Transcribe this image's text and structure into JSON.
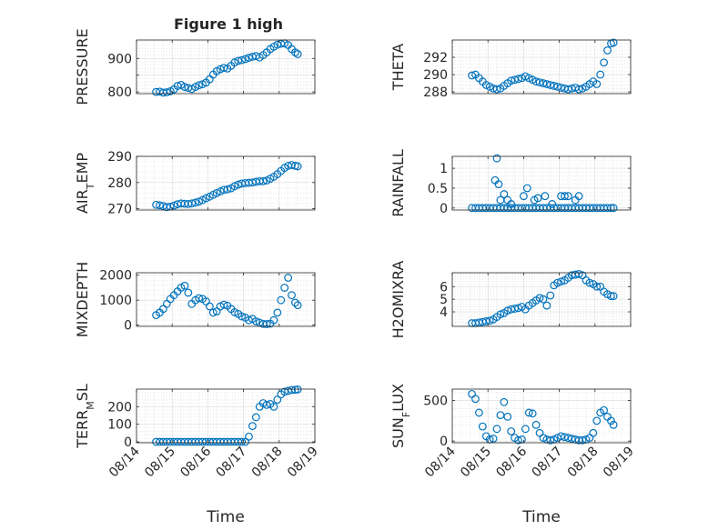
{
  "figure": {
    "title": "Figure 1 high",
    "xlabel": "Time",
    "xticklabels": [
      "08/14",
      "08/15",
      "08/16",
      "08/17",
      "08/18",
      "08/19"
    ],
    "marker_color": "#0072bd",
    "grid_color": "#d9d9d9"
  },
  "chart_data": [
    {
      "type": "scatter",
      "ylabel": "PRESSURE",
      "ylabel_sub": "",
      "ylim": [
        795,
        955
      ],
      "yticks": [
        800,
        850,
        900
      ],
      "yticklabels": [
        "800",
        "",
        "900"
      ],
      "xlabel": "",
      "x": [
        14.55,
        14.65,
        14.75,
        14.85,
        14.95,
        15.05,
        15.15,
        15.25,
        15.35,
        15.45,
        15.55,
        15.65,
        15.75,
        15.85,
        15.95,
        16.05,
        16.15,
        16.25,
        16.35,
        16.45,
        16.55,
        16.65,
        16.75,
        16.85,
        16.95,
        17.05,
        17.15,
        17.25,
        17.35,
        17.45,
        17.55,
        17.65,
        17.75,
        17.85,
        17.95,
        18.05,
        18.15,
        18.25,
        18.35,
        18.45,
        18.52
      ],
      "y": [
        800,
        801,
        798,
        799,
        802,
        808,
        818,
        821,
        815,
        812,
        809,
        815,
        820,
        823,
        828,
        838,
        852,
        862,
        868,
        872,
        870,
        878,
        888,
        893,
        895,
        898,
        902,
        905,
        907,
        903,
        910,
        918,
        928,
        935,
        941,
        944,
        945,
        940,
        928,
        918,
        913
      ]
    },
    {
      "type": "scatter",
      "ylabel": "THETA",
      "ylabel_sub": "",
      "ylim": [
        287.8,
        294
      ],
      "yticks": [
        288,
        290,
        292
      ],
      "yticklabels": [
        "288",
        "290",
        "292"
      ],
      "xlabel": "",
      "x": [
        14.55,
        14.65,
        14.75,
        14.85,
        14.95,
        15.05,
        15.15,
        15.25,
        15.35,
        15.45,
        15.55,
        15.65,
        15.75,
        15.85,
        15.95,
        16.05,
        16.15,
        16.25,
        16.35,
        16.45,
        16.55,
        16.65,
        16.75,
        16.85,
        16.95,
        17.05,
        17.15,
        17.25,
        17.35,
        17.45,
        17.55,
        17.65,
        17.75,
        17.85,
        17.95,
        18.05,
        18.15,
        18.25,
        18.35,
        18.45,
        18.52
      ],
      "y": [
        289.9,
        290.0,
        289.6,
        289.2,
        288.8,
        288.6,
        288.4,
        288.3,
        288.4,
        288.7,
        289.0,
        289.3,
        289.4,
        289.5,
        289.6,
        289.8,
        289.6,
        289.4,
        289.2,
        289.1,
        289.0,
        288.9,
        288.8,
        288.7,
        288.6,
        288.5,
        288.4,
        288.3,
        288.4,
        288.5,
        288.3,
        288.4,
        288.6,
        288.9,
        289.2,
        288.9,
        290.0,
        291.4,
        292.8,
        293.6,
        293.7
      ]
    },
    {
      "type": "scatter",
      "ylabel": "AIR",
      "ylabel_sub": "T",
      "ylabel_suffix": "EMP",
      "ylim": [
        269.5,
        290
      ],
      "yticks": [
        270,
        280,
        290
      ],
      "yticklabels": [
        "270",
        "280",
        "290"
      ],
      "xlabel": "",
      "x": [
        14.55,
        14.65,
        14.75,
        14.85,
        14.95,
        15.05,
        15.15,
        15.25,
        15.35,
        15.45,
        15.55,
        15.65,
        15.75,
        15.85,
        15.95,
        16.05,
        16.15,
        16.25,
        16.35,
        16.45,
        16.55,
        16.65,
        16.75,
        16.85,
        16.95,
        17.05,
        17.15,
        17.25,
        17.35,
        17.45,
        17.55,
        17.65,
        17.75,
        17.85,
        17.95,
        18.05,
        18.15,
        18.25,
        18.35,
        18.45,
        18.52
      ],
      "y": [
        271.5,
        271.3,
        271.0,
        270.6,
        270.8,
        271.2,
        271.7,
        272.0,
        271.9,
        271.8,
        272.0,
        272.3,
        272.7,
        273.3,
        274.0,
        274.6,
        275.3,
        276.0,
        276.6,
        277.2,
        277.4,
        277.8,
        278.6,
        279.2,
        279.6,
        279.8,
        279.9,
        280.0,
        280.3,
        280.5,
        280.5,
        280.8,
        281.5,
        282.2,
        283.2,
        284.4,
        285.6,
        286.4,
        286.7,
        286.4,
        286.2
      ]
    },
    {
      "type": "scatter",
      "ylabel": "RAINFALL",
      "ylabel_sub": "",
      "ylim": [
        -0.05,
        1.3
      ],
      "yticks": [
        0,
        0.5,
        1
      ],
      "yticklabels": [
        "0",
        "0.5",
        "1"
      ],
      "xlabel": "",
      "x": [
        14.55,
        14.65,
        14.75,
        14.85,
        14.95,
        15.05,
        15.15,
        15.25,
        15.35,
        15.45,
        15.55,
        15.65,
        15.75,
        15.85,
        15.95,
        16.05,
        16.15,
        16.25,
        16.35,
        16.45,
        16.55,
        16.65,
        16.75,
        16.85,
        16.95,
        17.05,
        17.15,
        17.25,
        17.35,
        17.45,
        17.55,
        17.65,
        17.75,
        17.85,
        17.95,
        18.05,
        18.15,
        18.25,
        18.35,
        18.45,
        18.52,
        15.2,
        15.25,
        15.3,
        15.35,
        15.45,
        15.55,
        15.65,
        16.0,
        16.1,
        16.3,
        16.4,
        16.6,
        16.8,
        17.05,
        17.15,
        17.25,
        17.45,
        17.55
      ],
      "y": [
        0,
        0,
        0,
        0,
        0,
        0,
        0,
        0,
        0,
        0,
        0,
        0,
        0,
        0,
        0,
        0,
        0,
        0,
        0,
        0,
        0,
        0,
        0,
        0,
        0,
        0,
        0,
        0,
        0,
        0,
        0,
        0,
        0,
        0,
        0,
        0,
        0,
        0,
        0,
        0,
        0,
        0.7,
        1.25,
        0.6,
        0.2,
        0.35,
        0.2,
        0.1,
        0.3,
        0.5,
        0.2,
        0.25,
        0.3,
        0.1,
        0.3,
        0.3,
        0.3,
        0.2,
        0.3
      ]
    },
    {
      "type": "scatter",
      "ylabel": "MIXDEPTH",
      "ylabel_sub": "",
      "ylim": [
        -50,
        2100
      ],
      "yticks": [
        0,
        1000,
        2000
      ],
      "yticklabels": [
        "0",
        "1000",
        "2000"
      ],
      "xlabel": "",
      "x": [
        14.55,
        14.65,
        14.75,
        14.85,
        14.95,
        15.05,
        15.15,
        15.25,
        15.35,
        15.45,
        15.55,
        15.65,
        15.75,
        15.85,
        15.95,
        16.05,
        16.15,
        16.25,
        16.35,
        16.45,
        16.55,
        16.65,
        16.75,
        16.85,
        16.95,
        17.05,
        17.15,
        17.25,
        17.35,
        17.45,
        17.55,
        17.65,
        17.75,
        17.85,
        17.95,
        18.05,
        18.15,
        18.25,
        18.35,
        18.45,
        18.52
      ],
      "y": [
        400,
        500,
        650,
        850,
        1050,
        1200,
        1350,
        1500,
        1580,
        1300,
        850,
        1000,
        1080,
        1050,
        950,
        750,
        500,
        550,
        750,
        820,
        780,
        650,
        520,
        450,
        350,
        300,
        200,
        250,
        150,
        100,
        50,
        40,
        60,
        200,
        500,
        1000,
        1500,
        1900,
        1200,
        900,
        800
      ]
    },
    {
      "type": "scatter",
      "ylabel": "H2OMIXRA",
      "ylabel_sub": "",
      "ylim": [
        2.85,
        7.1
      ],
      "yticks": [
        4,
        5,
        6
      ],
      "yticklabels": [
        "4",
        "5",
        "6"
      ],
      "xlabel": "",
      "x": [
        14.55,
        14.65,
        14.75,
        14.85,
        14.95,
        15.05,
        15.15,
        15.25,
        15.35,
        15.45,
        15.55,
        15.65,
        15.75,
        15.85,
        15.95,
        16.05,
        16.15,
        16.25,
        16.35,
        16.45,
        16.55,
        16.65,
        16.75,
        16.85,
        16.95,
        17.05,
        17.15,
        17.25,
        17.35,
        17.45,
        17.55,
        17.65,
        17.75,
        17.85,
        17.95,
        18.05,
        18.15,
        18.25,
        18.35,
        18.45,
        18.52
      ],
      "y": [
        3.1,
        3.1,
        3.15,
        3.2,
        3.25,
        3.3,
        3.4,
        3.6,
        3.8,
        3.9,
        4.1,
        4.2,
        4.25,
        4.3,
        4.4,
        4.2,
        4.5,
        4.7,
        4.9,
        5.1,
        5.0,
        4.5,
        5.3,
        6.1,
        6.3,
        6.4,
        6.5,
        6.7,
        6.9,
        6.95,
        7.0,
        6.9,
        6.5,
        6.3,
        6.2,
        6.0,
        6.0,
        5.6,
        5.4,
        5.25,
        5.25
      ]
    },
    {
      "type": "scatter",
      "ylabel": "TERR",
      "ylabel_sub": "M",
      "ylabel_suffix": "SL",
      "ylim": [
        -5,
        300
      ],
      "yticks": [
        0,
        100,
        200
      ],
      "yticklabels": [
        "0",
        "100",
        "200"
      ],
      "xlabel": "Time",
      "x": [
        14.55,
        14.65,
        14.75,
        14.85,
        14.95,
        15.05,
        15.15,
        15.25,
        15.35,
        15.45,
        15.55,
        15.65,
        15.75,
        15.85,
        15.95,
        16.05,
        16.15,
        16.25,
        16.35,
        16.45,
        16.55,
        16.65,
        16.75,
        16.85,
        16.95,
        17.05,
        17.15,
        17.25,
        17.35,
        17.45,
        17.55,
        17.65,
        17.75,
        17.85,
        17.95,
        18.05,
        18.15,
        18.25,
        18.35,
        18.45,
        18.52
      ],
      "y": [
        0,
        0,
        0,
        0,
        0,
        0,
        0,
        0,
        0,
        0,
        0,
        0,
        0,
        0,
        0,
        0,
        0,
        0,
        0,
        0,
        0,
        0,
        0,
        0,
        0,
        0,
        30,
        90,
        140,
        200,
        220,
        210,
        215,
        200,
        240,
        270,
        285,
        290,
        295,
        296,
        298
      ]
    },
    {
      "type": "scatter",
      "ylabel": "SUN",
      "ylabel_sub": "F",
      "ylabel_suffix": "LUX",
      "ylim": [
        -20,
        640
      ],
      "yticks": [
        0,
        500
      ],
      "yticklabels": [
        "0",
        "500"
      ],
      "xlabel": "Time",
      "x": [
        14.55,
        14.65,
        14.75,
        14.85,
        14.95,
        15.05,
        15.15,
        15.25,
        15.35,
        15.45,
        15.55,
        15.65,
        15.75,
        15.85,
        15.95,
        16.05,
        16.15,
        16.25,
        16.35,
        16.45,
        16.55,
        16.65,
        16.75,
        16.85,
        16.95,
        17.05,
        17.15,
        17.25,
        17.35,
        17.45,
        17.55,
        17.65,
        17.75,
        17.85,
        17.95,
        18.05,
        18.15,
        18.25,
        18.35,
        18.45,
        18.52
      ],
      "y": [
        580,
        520,
        350,
        180,
        60,
        20,
        30,
        150,
        320,
        480,
        300,
        120,
        40,
        10,
        20,
        150,
        350,
        340,
        200,
        100,
        40,
        20,
        10,
        20,
        40,
        60,
        50,
        40,
        30,
        20,
        10,
        10,
        20,
        40,
        100,
        250,
        350,
        380,
        300,
        250,
        200
      ]
    }
  ]
}
